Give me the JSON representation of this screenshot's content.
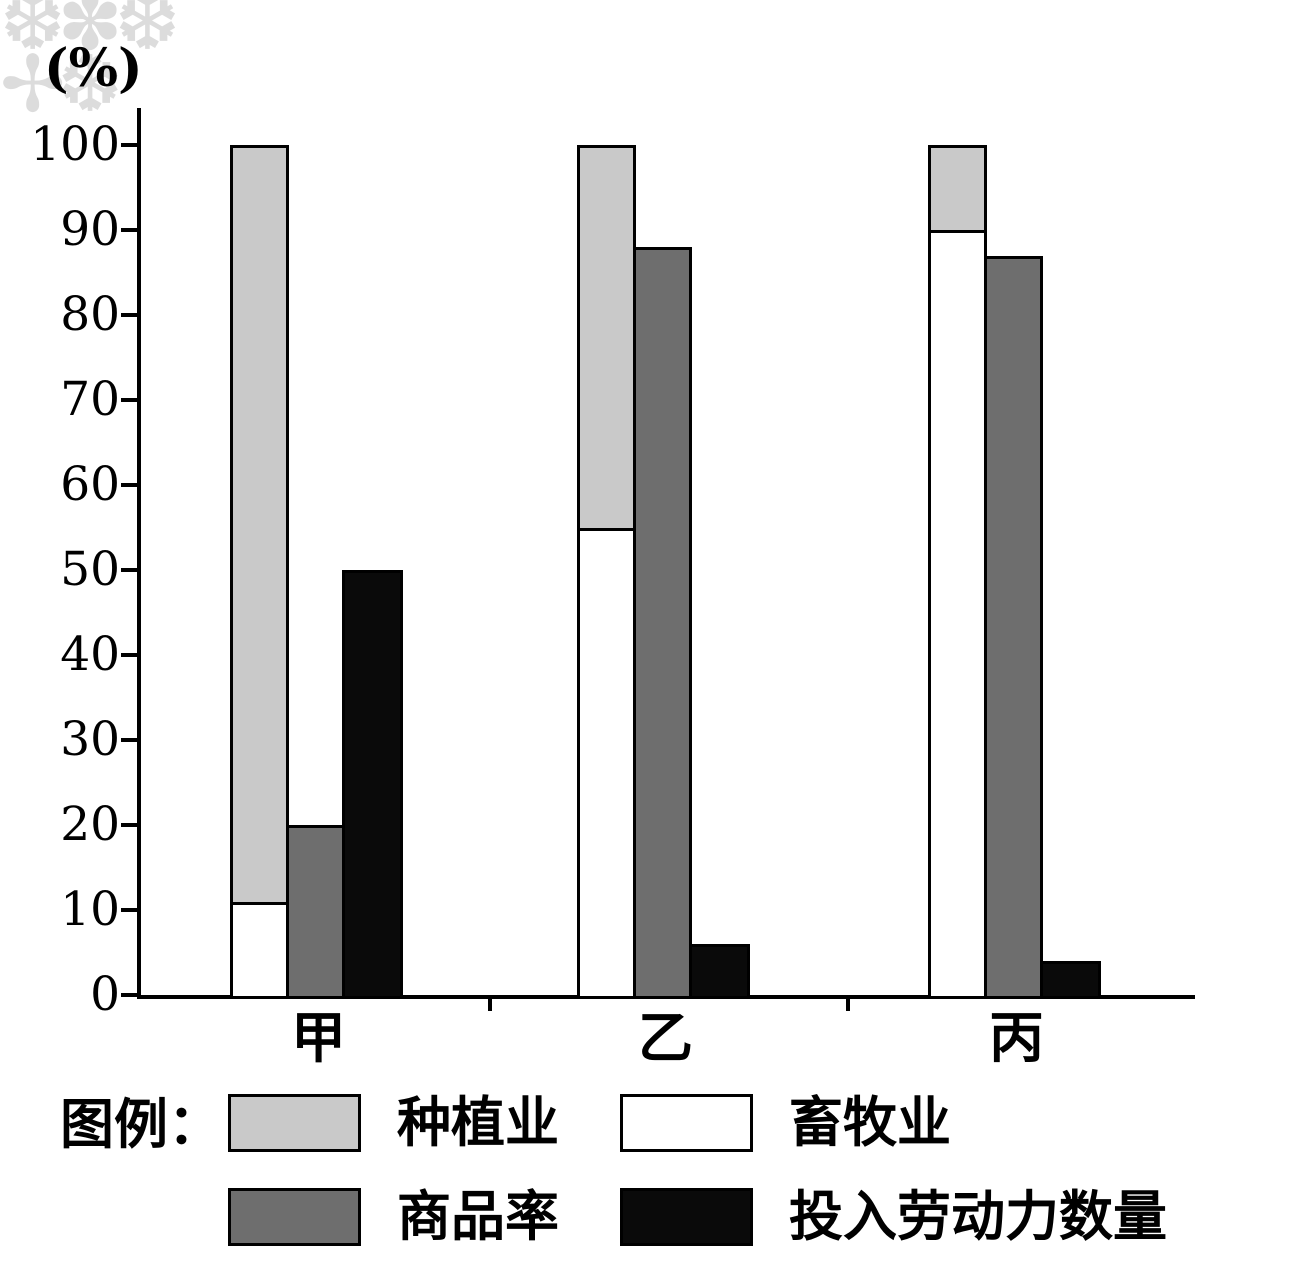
{
  "artifact": {
    "corner_watermark": "❆✽❆ ✢❆"
  },
  "legend": {
    "title": "图例："
  },
  "chart_data": {
    "type": "bar",
    "title": "",
    "xlabel": "",
    "ylabel": "(%)",
    "ylim": [
      0,
      100
    ],
    "yticks": [
      0,
      10,
      20,
      30,
      40,
      50,
      60,
      70,
      80,
      90,
      100
    ],
    "categories": [
      "甲",
      "乙",
      "丙"
    ],
    "grid": false,
    "legend_position": "bottom",
    "bar_layout": "first bar of each group is stacked (畜牧业 bottom + 种植业 top), followed by 商品率 bar and 投入劳动力数量 bar",
    "series": [
      {
        "name": "种植业",
        "render": "stack-top",
        "color": "#c9c9c9",
        "values": [
          89,
          45,
          10
        ]
      },
      {
        "name": "畜牧业",
        "render": "stack-bottom",
        "color": "#ffffff",
        "values": [
          11,
          55,
          90
        ]
      },
      {
        "name": "商品率",
        "render": "bar",
        "color": "#6e6e6e",
        "values": [
          20,
          88,
          87
        ]
      },
      {
        "name": "投入劳动力数量",
        "render": "bar",
        "color": "#0a0a0a",
        "values": [
          50,
          6,
          4
        ]
      }
    ]
  }
}
